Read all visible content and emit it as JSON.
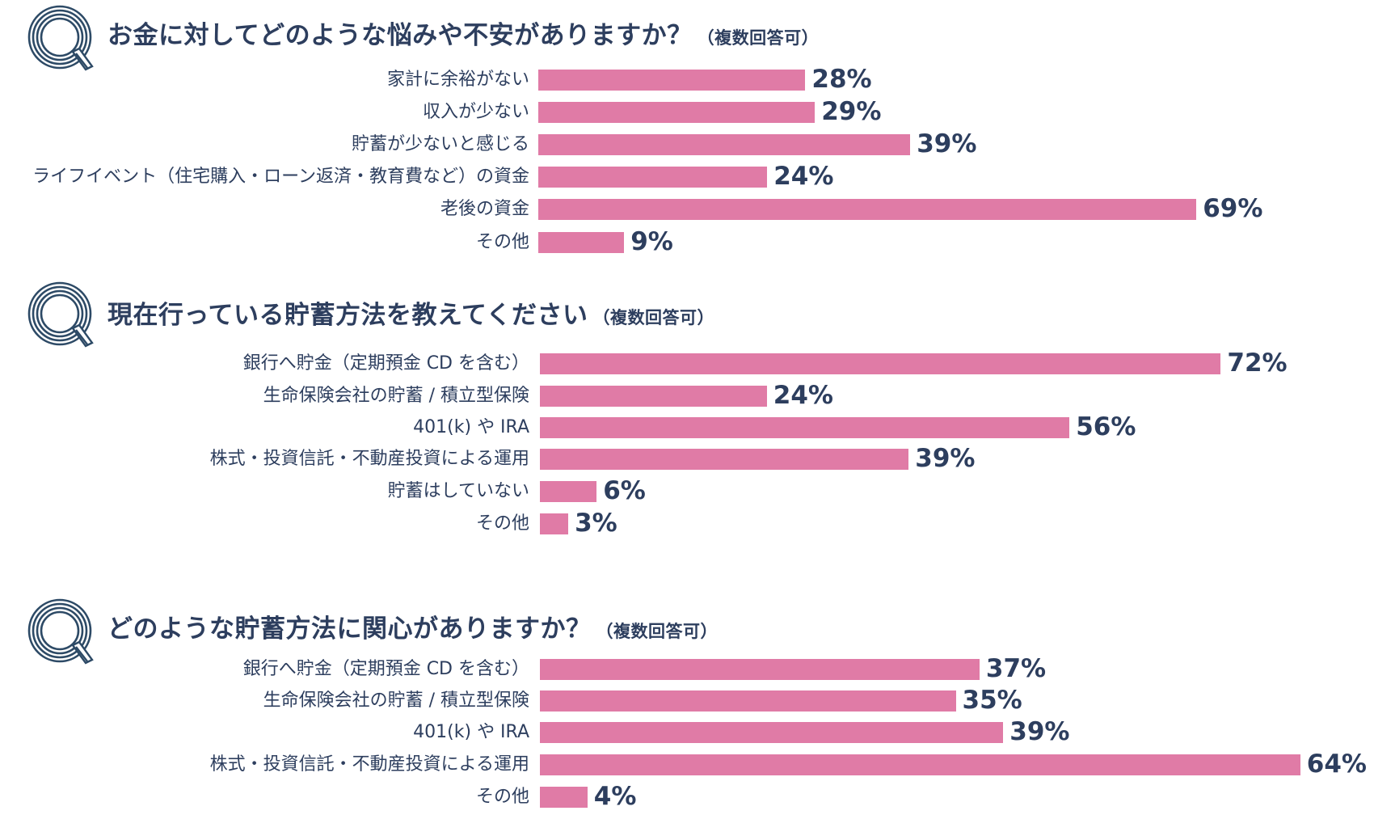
{
  "colors": {
    "bar": "#e07ba6",
    "text": "#2d3e5e"
  },
  "chart_data": [
    {
      "type": "bar",
      "orientation": "horizontal",
      "icon": "q-icon",
      "title": "お金に対してどのような悩みや不安がありますか？",
      "note": "（複数回答可）",
      "categories": [
        "家計に余裕がない",
        "収入が少ない",
        "貯蓄が少ないと感じる",
        "ライフイベント（住宅購入・ローン返済・教育費など）の資金",
        "老後の資金",
        "その他"
      ],
      "values": [
        28,
        29,
        39,
        24,
        69,
        9
      ],
      "value_labels": [
        "28%",
        "29%",
        "39%",
        "24%",
        "69%",
        "9%"
      ],
      "unit": "%"
    },
    {
      "type": "bar",
      "orientation": "horizontal",
      "icon": "q-icon",
      "title": "現在行っている貯蓄方法を教えてください",
      "note": "（複数回答可）",
      "categories": [
        "銀行へ貯金（定期預金 CD を含む）",
        "生命保険会社の貯蓄 / 積立型保険",
        "401(k) や IRA",
        "株式・投資信託・不動産投資による運用",
        "貯蓄はしていない",
        "その他"
      ],
      "values": [
        72,
        24,
        56,
        39,
        6,
        3
      ],
      "value_labels": [
        "72%",
        "24%",
        "56%",
        "39%",
        "6%",
        "3%"
      ],
      "unit": "%"
    },
    {
      "type": "bar",
      "orientation": "horizontal",
      "icon": "q-icon",
      "title": "どのような貯蓄方法に関心がありますか？",
      "note": "（複数回答可）",
      "categories": [
        "銀行へ貯金（定期預金 CD を含む）",
        "生命保険会社の貯蓄 / 積立型保険",
        "401(k) や IRA",
        "株式・投資信託・不動産投資による運用",
        "その他"
      ],
      "values": [
        37,
        35,
        39,
        64,
        4
      ],
      "value_labels": [
        "37%",
        "35%",
        "39%",
        "64%",
        "4%"
      ],
      "unit": "%"
    }
  ]
}
